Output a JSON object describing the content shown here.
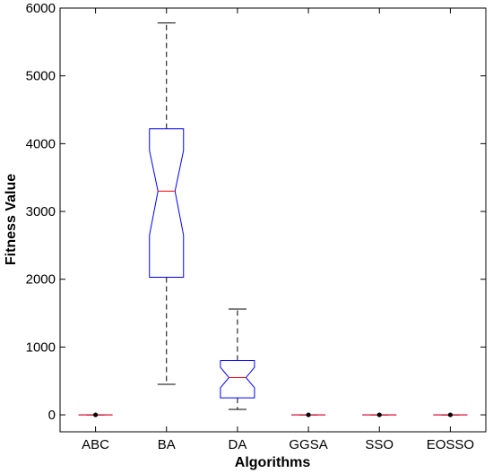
{
  "chart_data": {
    "type": "box",
    "xlabel": "Algorithms",
    "ylabel": "Fitness Value",
    "ylim": [
      -250,
      6000
    ],
    "yticks": [
      0,
      1000,
      2000,
      3000,
      4000,
      5000,
      6000
    ],
    "grid": false,
    "notched": true,
    "colors": {
      "box": "#0000ff",
      "median": "#ff0000",
      "whisker": "#000000",
      "outlier": "#000000"
    },
    "categories": [
      "ABC",
      "BA",
      "DA",
      "GGSA",
      "SSO",
      "EOSSO"
    ],
    "boxes": [
      {
        "min": 0,
        "q1": 0,
        "median": 0,
        "q3": 0,
        "max": 0,
        "notch_low": 0,
        "notch_high": 0,
        "outliers": [
          0
        ]
      },
      {
        "min": 450,
        "q1": 2030,
        "median": 3300,
        "q3": 4220,
        "max": 5780,
        "notch_low": 2650,
        "notch_high": 3900,
        "outliers": []
      },
      {
        "min": 80,
        "q1": 250,
        "median": 550,
        "q3": 800,
        "max": 1560,
        "notch_low": 400,
        "notch_high": 700,
        "outliers": []
      },
      {
        "min": 0,
        "q1": 0,
        "median": 0,
        "q3": 0,
        "max": 0,
        "notch_low": 0,
        "notch_high": 0,
        "outliers": [
          0
        ]
      },
      {
        "min": 0,
        "q1": 0,
        "median": 0,
        "q3": 0,
        "max": 0,
        "notch_low": 0,
        "notch_high": 0,
        "outliers": [
          0
        ]
      },
      {
        "min": 0,
        "q1": 0,
        "median": 0,
        "q3": 0,
        "max": 0,
        "notch_low": 0,
        "notch_high": 0,
        "outliers": [
          0
        ]
      }
    ]
  }
}
